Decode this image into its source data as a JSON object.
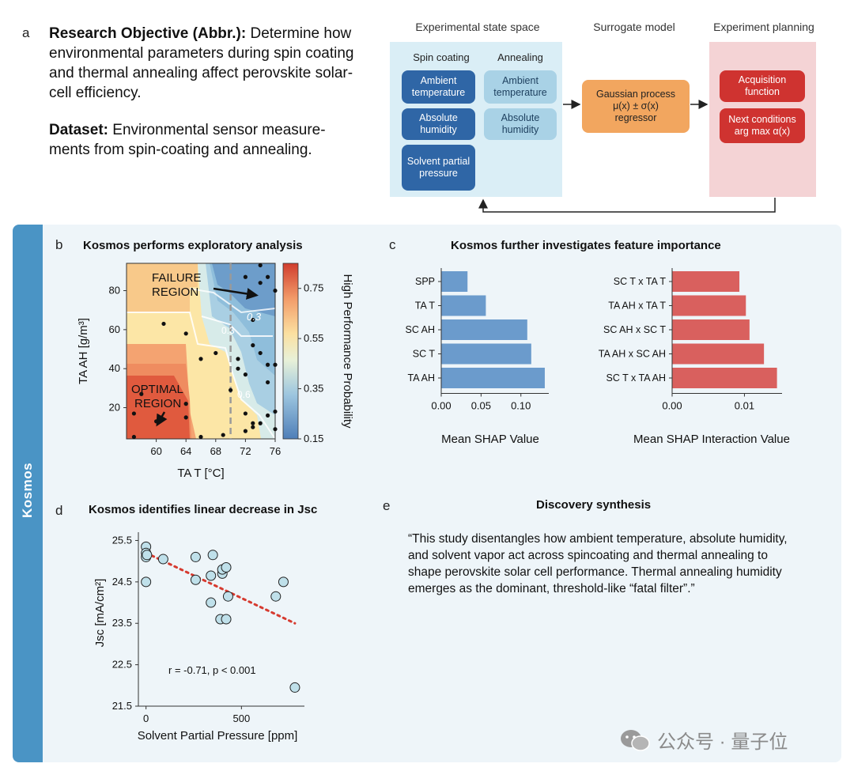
{
  "panel_a": {
    "letter": "a",
    "objective_label": "Research Objective (Abbr.):",
    "objective_text": "Determine how environmental parameters during spin coating and thermal annealing affect perovskite solar-cell efficiency.",
    "dataset_label": "Dataset:",
    "dataset_text": "Environmental sensor measure-ments from spin-coating and annealing.",
    "flow": {
      "state_space_title": "Experimental state space",
      "surrogate_title": "Surrogate model",
      "planning_title": "Experiment planning",
      "spin_coating_label": "Spin coating",
      "annealing_label": "Annealing",
      "spin_items": [
        "Ambient temperature",
        "Absolute humidity",
        "Solvent partial pressure"
      ],
      "anneal_items": [
        "Ambient temperature",
        "Absolute humidity"
      ],
      "gp_line1": "Gaussian process",
      "gp_line2": "μ(x) ± σ(x)",
      "gp_line3": "regressor",
      "acq_label": "Acquisition function",
      "next_line1": "Next conditions",
      "next_line2": "arg max α(x)"
    }
  },
  "kosmos_label": "Kosmos",
  "panel_b": {
    "letter": "b",
    "title": "Kosmos performs exploratory analysis",
    "failure_label": "FAILURE\nREGION",
    "optimal_label": "OPTIMAL\nREGION",
    "contour_labels": [
      "0.3",
      "0.3",
      "0.6"
    ]
  },
  "panel_c": {
    "letter": "c",
    "title": "Kosmos further investigates feature importance"
  },
  "panel_d": {
    "letter": "d",
    "title": "Kosmos identifies linear decrease in Jsc",
    "annotation": "r = -0.71, p < 0.001"
  },
  "panel_e": {
    "letter": "e",
    "title": "Discovery synthesis",
    "quote": "“This study disentangles how ambient temperature, absolute humidity, and solvent vapor act across spincoating and thermal annealing to shape perovskite solar cell performance. Thermal annealing humidity emerges as the dominant, threshold-like “fatal filter”.”"
  },
  "watermark": "公众号 · 量子位",
  "colors": {
    "kosmos_blue": "#4a94c5",
    "shap_blue": "#6b9bcc",
    "shap_red": "#d9605e",
    "gp_orange": "#f2a65f",
    "acq_red": "#cf3330"
  },
  "chart_data": [
    {
      "type": "heatmap",
      "xlabel": "TA T [°C]",
      "ylabel": "TA AH [g/m³]",
      "x_ticks": [
        60,
        64,
        68,
        72,
        76
      ],
      "y_ticks": [
        20,
        40,
        60,
        80
      ],
      "xlim": [
        56,
        76
      ],
      "ylim": [
        4,
        94
      ],
      "colorbar_label": "High Performance Probability",
      "colorbar_ticks": [
        0.75,
        0.55,
        0.35,
        0.15
      ],
      "colorbar_range": [
        0.15,
        0.85
      ],
      "threshold_x": 70,
      "points": [
        [
          57,
          17
        ],
        [
          57,
          5
        ],
        [
          58,
          27
        ],
        [
          60,
          13
        ],
        [
          61,
          63
        ],
        [
          64,
          58
        ],
        [
          64,
          22
        ],
        [
          64,
          15
        ],
        [
          66,
          45
        ],
        [
          66,
          5
        ],
        [
          68,
          48
        ],
        [
          69,
          6
        ],
        [
          70,
          29
        ],
        [
          71,
          45
        ],
        [
          71,
          40
        ],
        [
          72,
          37
        ],
        [
          72,
          17
        ],
        [
          72,
          8
        ],
        [
          73,
          12
        ],
        [
          73,
          10
        ],
        [
          74,
          12
        ],
        [
          73,
          52
        ],
        [
          74,
          48
        ],
        [
          75,
          42
        ],
        [
          75,
          16
        ],
        [
          75,
          33
        ],
        [
          76,
          42
        ],
        [
          76,
          18
        ],
        [
          76,
          9
        ],
        [
          72,
          87
        ],
        [
          74,
          93
        ],
        [
          74,
          84
        ],
        [
          76,
          80
        ],
        [
          75,
          87
        ],
        [
          73,
          65
        ]
      ]
    },
    {
      "type": "bar",
      "orientation": "horizontal",
      "categories": [
        "SPP",
        "TA T",
        "SC AH",
        "SC T",
        "TA AH"
      ],
      "values": [
        0.033,
        0.056,
        0.108,
        0.113,
        0.13
      ],
      "xlabel": "Mean SHAP Value",
      "x_ticks": [
        "0.00",
        "0.05",
        "0.10"
      ],
      "xlim": [
        0,
        0.135
      ]
    },
    {
      "type": "bar",
      "orientation": "horizontal",
      "categories": [
        "SC T x TA T",
        "TA AH x TA T",
        "SC AH x SC T",
        "TA AH x SC AH",
        "SC T x TA AH"
      ],
      "values": [
        0.0093,
        0.0102,
        0.0107,
        0.0127,
        0.0145
      ],
      "xlabel": "Mean SHAP Interaction Value",
      "x_ticks": [
        "0.00",
        "0.01"
      ],
      "xlim": [
        0,
        0.0152
      ]
    },
    {
      "type": "scatter",
      "xlabel": "Solvent Partial Pressure [ppm]",
      "ylabel": "Jsc [mA/cm²]",
      "x_ticks": [
        0,
        500
      ],
      "y_ticks": [
        "25.5",
        "24.5",
        "23.5",
        "22.5",
        "21.5"
      ],
      "xlim": [
        -40,
        830
      ],
      "ylim": [
        21.5,
        25.7
      ],
      "x": [
        0,
        0,
        0,
        0,
        5,
        90,
        260,
        260,
        340,
        340,
        350,
        390,
        400,
        400,
        420,
        420,
        430,
        680,
        720,
        780
      ],
      "y": [
        25.35,
        25.2,
        25.1,
        24.5,
        25.15,
        25.05,
        25.1,
        24.55,
        24.65,
        24.0,
        25.15,
        23.6,
        24.7,
        24.8,
        23.6,
        24.85,
        24.15,
        24.15,
        24.5,
        21.95
      ],
      "trend": {
        "x": [
          0,
          780
        ],
        "y": [
          25.2,
          23.5
        ]
      }
    }
  ]
}
